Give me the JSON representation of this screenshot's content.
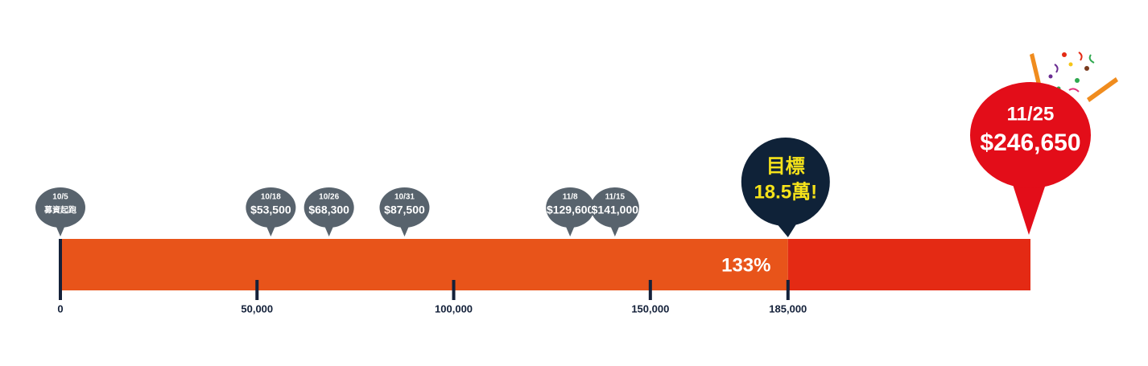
{
  "chart_data": {
    "type": "progress",
    "xlim": [
      0,
      246650
    ],
    "xticks": [
      0,
      {
        "value": 50000,
        "label": "50,000"
      },
      {
        "value": 100000,
        "label": "100,000"
      },
      {
        "value": 150000,
        "label": "150,000"
      },
      {
        "value": 185000,
        "label": "185,000"
      }
    ],
    "milestones": [
      {
        "date": "10/5",
        "value": 0,
        "label": "募資起跑"
      },
      {
        "date": "10/18",
        "value": 53500,
        "label": "$53,500"
      },
      {
        "date": "10/26",
        "value": 68300,
        "label": "$68,300"
      },
      {
        "date": "10/31",
        "value": 87500,
        "label": "$87,500"
      },
      {
        "date": "11/8",
        "value": 129600,
        "label": "$129,600"
      },
      {
        "date": "11/15",
        "value": 141000,
        "label": "$141,000"
      }
    ],
    "goal": {
      "title": "目標",
      "value": 185000,
      "label": "18.5萬!",
      "color": "#e8541a"
    },
    "final": {
      "date": "11/25",
      "value": 246650,
      "label": "$246,650",
      "color": "#e42a14"
    },
    "percent": {
      "value": 133,
      "label": "133%"
    }
  }
}
